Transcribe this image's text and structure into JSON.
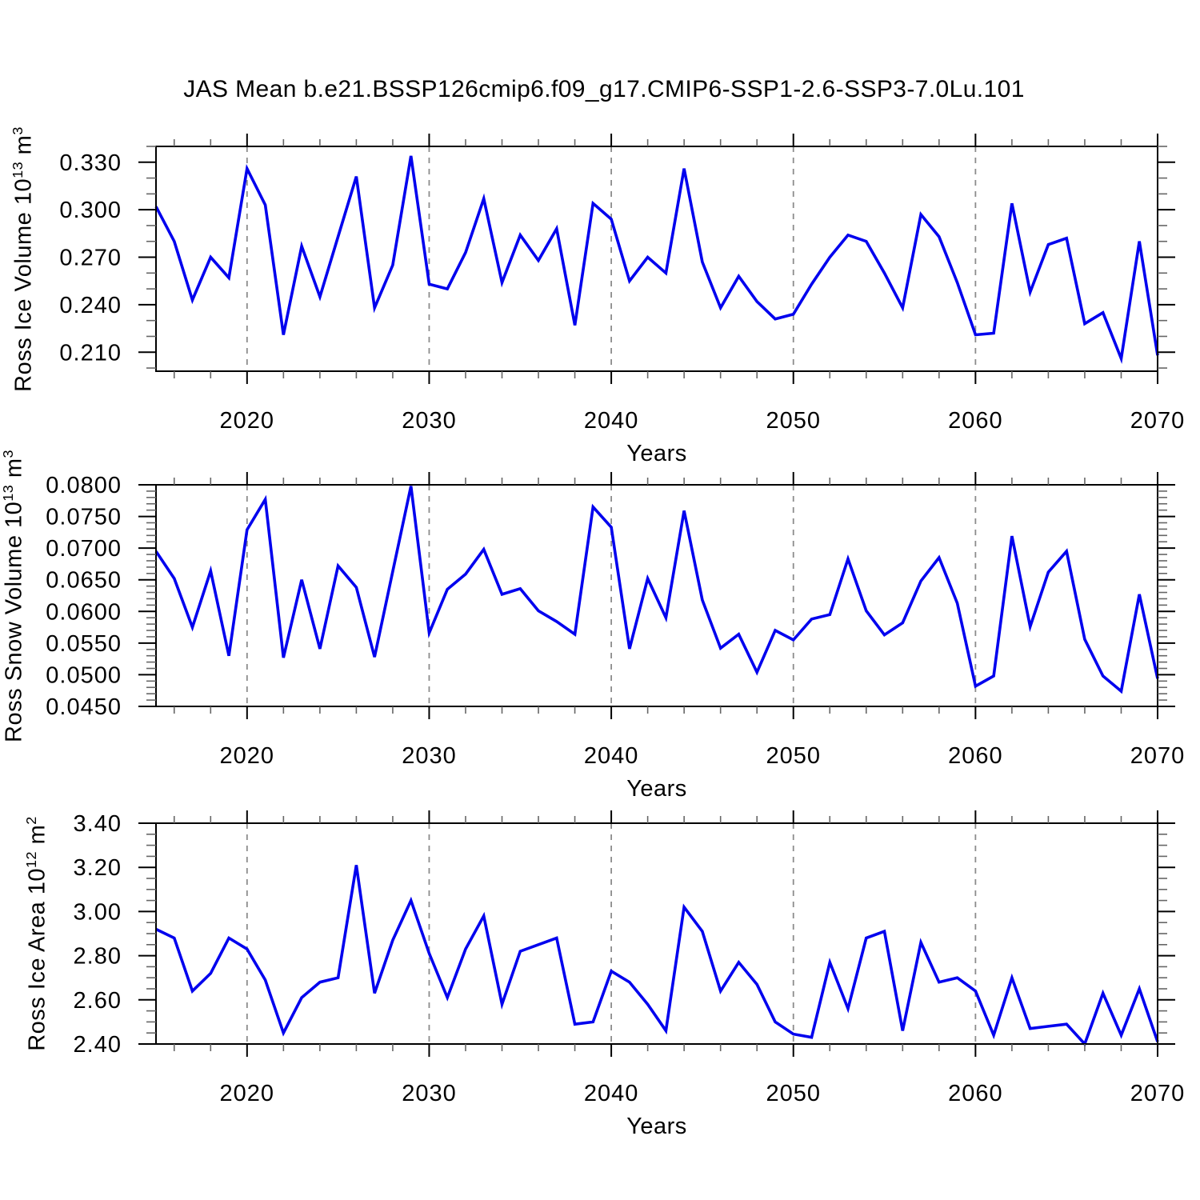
{
  "title": "JAS Mean b.e21.BSSP126cmip6.f09_g17.CMIP6-SSP1-2.6-SSP3-7.0Lu.101",
  "xlabel": "Years",
  "colors": {
    "line": "#0000EE",
    "grid": "#8C8C8C",
    "frame": "#000000",
    "major_tick": "#000000",
    "minor_tick": "#666666"
  },
  "years": [
    2015,
    2016,
    2017,
    2018,
    2019,
    2020,
    2021,
    2022,
    2023,
    2024,
    2025,
    2026,
    2027,
    2028,
    2029,
    2030,
    2031,
    2032,
    2033,
    2034,
    2035,
    2036,
    2037,
    2038,
    2039,
    2040,
    2041,
    2042,
    2043,
    2044,
    2045,
    2046,
    2047,
    2048,
    2049,
    2050,
    2051,
    2052,
    2053,
    2054,
    2055,
    2056,
    2057,
    2058,
    2059,
    2060,
    2061,
    2062,
    2063,
    2064,
    2065,
    2066,
    2067,
    2068,
    2069,
    2070
  ],
  "chart_data": [
    {
      "type": "line",
      "panel": "ross-ice-volume",
      "ylabel": "Ross Ice Volume 10^13 m^3",
      "ylabel_parts": [
        {
          "text": "Ross Ice Volume 10"
        },
        {
          "text": "13",
          "sup": true
        },
        {
          "text": " m"
        },
        {
          "text": "3",
          "sup": true
        }
      ],
      "xlabel": "Years",
      "xlim": [
        2015,
        2070
      ],
      "ylim": [
        0.198,
        0.34
      ],
      "ytick_values": [
        0.21,
        0.24,
        0.27,
        0.3,
        0.33
      ],
      "ytick_labels": [
        "0.210",
        "0.240",
        "0.270",
        "0.300",
        "0.330"
      ],
      "yminor": {
        "start": 0.2,
        "end": 0.34,
        "step": 0.01
      },
      "xtick_values": [
        2020,
        2030,
        2040,
        2050,
        2060,
        2070
      ],
      "xtick_labels": [
        "2020",
        "2030",
        "2040",
        "2050",
        "2060",
        "2070"
      ],
      "xminor": {
        "start": 2016,
        "end": 2068,
        "step": 2
      },
      "grid_x": [
        2020,
        2030,
        2040,
        2050,
        2060
      ],
      "values": [
        0.302,
        0.28,
        0.243,
        0.27,
        0.257,
        0.326,
        0.303,
        0.221,
        0.277,
        0.245,
        0.283,
        0.321,
        0.238,
        0.265,
        0.334,
        0.253,
        0.25,
        0.273,
        0.307,
        0.254,
        0.284,
        0.268,
        0.288,
        0.227,
        0.304,
        0.294,
        0.255,
        0.27,
        0.26,
        0.326,
        0.267,
        0.238,
        0.258,
        0.242,
        0.231,
        0.234,
        0.253,
        0.27,
        0.284,
        0.28,
        0.26,
        0.238,
        0.297,
        0.283,
        0.254,
        0.221,
        0.222,
        0.304,
        0.248,
        0.278,
        0.282,
        0.228,
        0.235,
        0.206,
        0.28,
        0.208
      ]
    },
    {
      "type": "line",
      "panel": "ross-snow-volume",
      "ylabel": "Ross Snow Volume 10^13 m^3",
      "ylabel_parts": [
        {
          "text": "Ross Snow Volume 10"
        },
        {
          "text": "13",
          "sup": true
        },
        {
          "text": " m"
        },
        {
          "text": "3",
          "sup": true
        }
      ],
      "xlabel": "Years",
      "xlim": [
        2015,
        2070
      ],
      "ylim": [
        0.045,
        0.08
      ],
      "ytick_values": [
        0.045,
        0.05,
        0.055,
        0.06,
        0.065,
        0.07,
        0.075,
        0.08
      ],
      "ytick_labels": [
        "0.0450",
        "0.0500",
        "0.0550",
        "0.0600",
        "0.0650",
        "0.0700",
        "0.0750",
        "0.0800"
      ],
      "yminor": {
        "start": 0.045,
        "end": 0.08,
        "step": 0.001
      },
      "xtick_values": [
        2020,
        2030,
        2040,
        2050,
        2060,
        2070
      ],
      "xtick_labels": [
        "2020",
        "2030",
        "2040",
        "2050",
        "2060",
        "2070"
      ],
      "xminor": {
        "start": 2016,
        "end": 2068,
        "step": 2
      },
      "grid_x": [
        2020,
        2030,
        2040,
        2050,
        2060
      ],
      "values": [
        0.0695,
        0.0652,
        0.0575,
        0.0664,
        0.053,
        0.0729,
        0.0777,
        0.0527,
        0.065,
        0.0541,
        0.0672,
        0.0638,
        0.0528,
        0.0663,
        0.0798,
        0.0566,
        0.0635,
        0.0659,
        0.0698,
        0.0627,
        0.0636,
        0.0601,
        0.0584,
        0.0564,
        0.0765,
        0.0733,
        0.0541,
        0.0652,
        0.059,
        0.0759,
        0.0618,
        0.0542,
        0.0564,
        0.0504,
        0.057,
        0.0555,
        0.0588,
        0.0595,
        0.0683,
        0.0601,
        0.0563,
        0.0582,
        0.0648,
        0.0685,
        0.0613,
        0.0482,
        0.0498,
        0.0719,
        0.0576,
        0.0662,
        0.0695,
        0.0556,
        0.0498,
        0.0474,
        0.0627,
        0.0494
      ]
    },
    {
      "type": "line",
      "panel": "ross-ice-area",
      "ylabel": "Ross Ice Area 10^12 m^2",
      "ylabel_parts": [
        {
          "text": "Ross Ice Area 10"
        },
        {
          "text": "12",
          "sup": true
        },
        {
          "text": " m"
        },
        {
          "text": "2",
          "sup": true
        }
      ],
      "xlabel": "Years",
      "xlim": [
        2015,
        2070
      ],
      "ylim": [
        2.4,
        3.4
      ],
      "ytick_values": [
        2.4,
        2.6,
        2.8,
        3.0,
        3.2,
        3.4
      ],
      "ytick_labels": [
        "2.40",
        "2.60",
        "2.80",
        "3.00",
        "3.20",
        "3.40"
      ],
      "yminor": {
        "start": 2.4,
        "end": 3.4,
        "step": 0.05
      },
      "xtick_values": [
        2020,
        2030,
        2040,
        2050,
        2060,
        2070
      ],
      "xtick_labels": [
        "2020",
        "2030",
        "2040",
        "2050",
        "2060",
        "2070"
      ],
      "xminor": {
        "start": 2016,
        "end": 2068,
        "step": 2
      },
      "grid_x": [
        2020,
        2030,
        2040,
        2050,
        2060
      ],
      "values": [
        2.92,
        2.88,
        2.64,
        2.72,
        2.88,
        2.83,
        2.69,
        2.45,
        2.61,
        2.68,
        2.7,
        3.21,
        2.63,
        2.87,
        3.05,
        2.81,
        2.61,
        2.83,
        2.98,
        2.58,
        2.82,
        2.85,
        2.88,
        2.49,
        2.5,
        2.73,
        2.68,
        2.58,
        2.46,
        3.02,
        2.91,
        2.64,
        2.77,
        2.67,
        2.5,
        2.445,
        2.43,
        2.77,
        2.56,
        2.88,
        2.91,
        2.46,
        2.86,
        2.68,
        2.7,
        2.64,
        2.44,
        2.7,
        2.47,
        2.48,
        2.49,
        2.4,
        2.63,
        2.44,
        2.65,
        2.41
      ]
    }
  ]
}
